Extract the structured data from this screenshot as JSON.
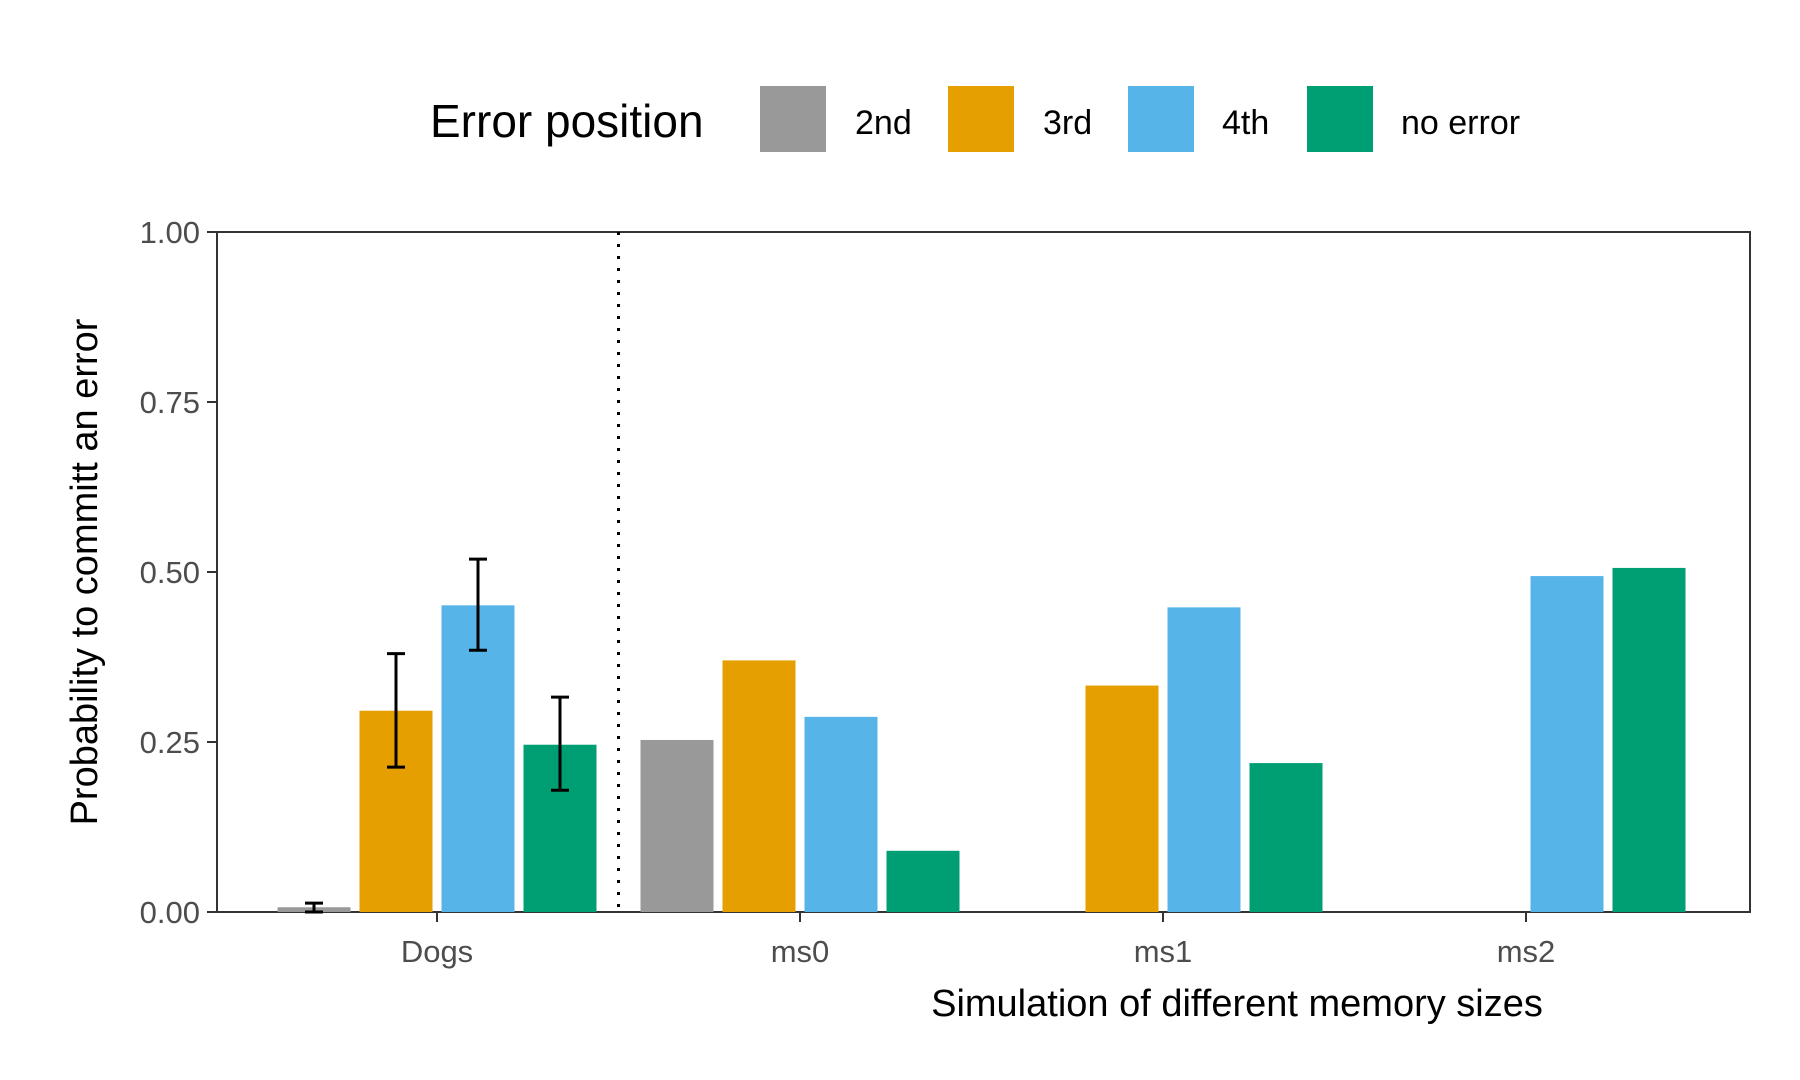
{
  "chart_data": {
    "type": "bar",
    "legend": {
      "title": "Error position",
      "placement": "top"
    },
    "xlabel": "Simulation of different memory sizes",
    "ylabel": "Probability to committ an error",
    "ylim": [
      0,
      1
    ],
    "y_ticks": [
      "0.00",
      "0.25",
      "0.50",
      "0.75",
      "1.00"
    ],
    "grid": false,
    "categories": [
      "Dogs",
      "ms0",
      "ms1",
      "ms2"
    ],
    "series": [
      {
        "name": "2nd",
        "color": "#999999",
        "values": [
          0.007,
          0.253,
          null,
          null
        ]
      },
      {
        "name": "3rd",
        "color": "#E69F00",
        "values": [
          0.296,
          0.37,
          0.333,
          null
        ]
      },
      {
        "name": "4th",
        "color": "#56B4E9",
        "values": [
          0.451,
          0.287,
          0.448,
          0.494
        ]
      },
      {
        "name": "no error",
        "color": "#009E73",
        "values": [
          0.246,
          0.09,
          0.219,
          0.506
        ]
      }
    ],
    "error_bars": {
      "category": "Dogs",
      "ranges": [
        [
          0.0,
          0.013
        ],
        [
          0.213,
          0.38
        ],
        [
          0.385,
          0.519
        ],
        [
          0.179,
          0.316
        ]
      ]
    },
    "separator": "dotted vertical line between Dogs and ms0"
  }
}
